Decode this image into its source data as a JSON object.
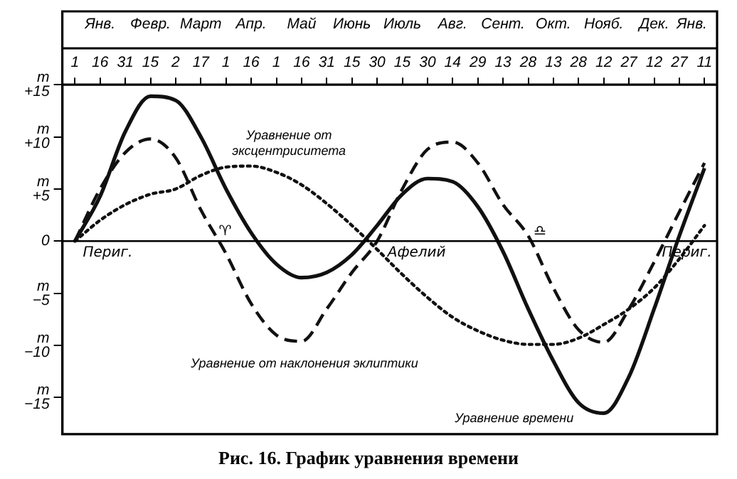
{
  "chart_data": {
    "type": "line",
    "title": "Рис. 16. График уравнения времени",
    "categories": [
      "1",
      "16",
      "31",
      "15",
      "2",
      "17",
      "1",
      "16",
      "1",
      "16",
      "31",
      "15",
      "30",
      "15",
      "30",
      "14",
      "29",
      "13",
      "28",
      "13",
      "28",
      "12",
      "27",
      "12",
      "27",
      "11"
    ],
    "ylim": [
      -18.5,
      15
    ],
    "yticks": [
      {
        "value": 15,
        "label": "m\n+15"
      },
      {
        "value": 10,
        "label": "m\n+10"
      },
      {
        "value": 5,
        "label": "m\n+5"
      },
      0,
      {
        "value": -5,
        "label": "m\n−5"
      },
      {
        "value": -10,
        "label": "m\n−10"
      },
      {
        "value": -15,
        "label": "m\n−15"
      }
    ],
    "grid": false,
    "legend": false,
    "marker": "none",
    "ref_lines": [
      {
        "axis": "y",
        "value": 0,
        "color": "#000000"
      }
    ],
    "series": [
      {
        "name": "Уравнение от эксцентриситета",
        "color": "#111111",
        "line_style": "dotted",
        "values": [
          0,
          2,
          3.5,
          4.5,
          5,
          6.3,
          7.1,
          7.2,
          6.6,
          5.4,
          3.6,
          1.5,
          -0.8,
          -3.2,
          -5.4,
          -7.3,
          -8.6,
          -9.5,
          -9.9,
          -9.9,
          -9.3,
          -8,
          -6.5,
          -4.5,
          -1.7,
          1.5
        ]
      },
      {
        "name": "Уравнение от наклонения эклиптики",
        "color": "#111111",
        "line_style": "dashed",
        "values": [
          0,
          5,
          8.5,
          9.8,
          8,
          3,
          -1.2,
          -6,
          -9,
          -9.6,
          -6.5,
          -3,
          0,
          5,
          8.8,
          9.5,
          7.5,
          3.5,
          0.5,
          -4.5,
          -8.5,
          -9.7,
          -6.5,
          -2,
          2.8,
          7.5
        ]
      },
      {
        "name": "Уравнение времени",
        "color": "#111111",
        "line_style": "solid",
        "values": [
          0,
          4.3,
          10.5,
          13.9,
          13.5,
          10,
          5,
          0.8,
          -2.2,
          -3.5,
          -3,
          -1.3,
          1.5,
          4.5,
          6,
          5.7,
          3.3,
          -1,
          -6.5,
          -11.5,
          -15.5,
          -16.5,
          -13,
          -6.5,
          0.5,
          7
        ]
      }
    ],
    "annotations": [
      "Янв.",
      "Февр.",
      "Март",
      "Апр.",
      "Май",
      "Июнь",
      "Июль",
      "Авг.",
      "Сент.",
      "Окт.",
      "Нояб.",
      "Дек.",
      "Янв.",
      "Периг.",
      "♈",
      "Афелий",
      "♎",
      "Периг."
    ]
  }
}
